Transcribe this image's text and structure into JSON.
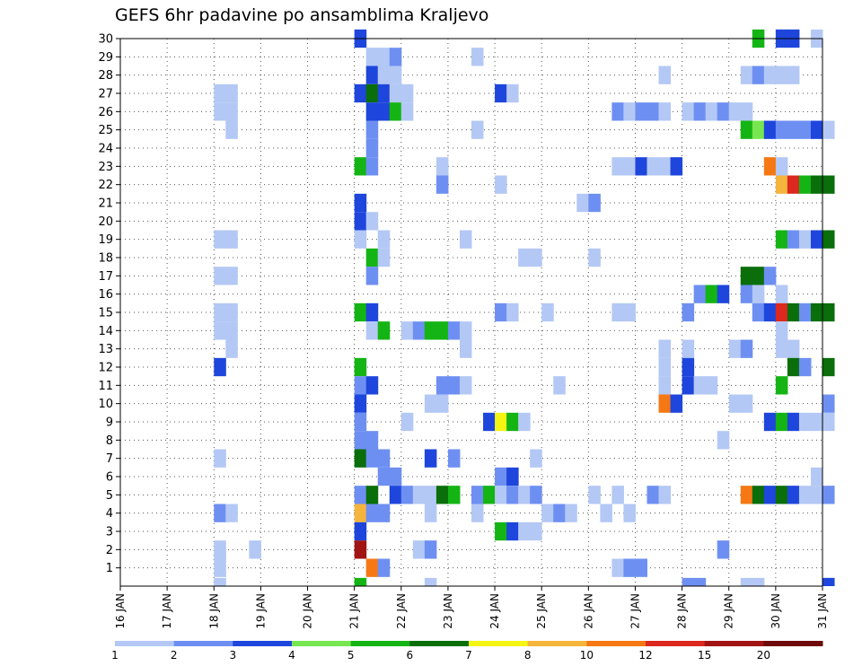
{
  "chart_data": {
    "type": "heatmap",
    "title": "GEFS 6hr padavine po ansamblima Kraljevo",
    "xlabel": "",
    "ylabel": "",
    "x_tick_labels": [
      "16 JAN",
      "17 JAN",
      "18 JAN",
      "19 JAN",
      "20 JAN",
      "21 JAN",
      "22 JAN",
      "23 JAN",
      "24 JAN",
      "25 JAN",
      "26 JAN",
      "27 JAN",
      "28 JAN",
      "29 JAN",
      "30 JAN",
      "31 JAN"
    ],
    "x_range_days": [
      16,
      31
    ],
    "y_tick_labels": [
      "1",
      "2",
      "3",
      "4",
      "5",
      "6",
      "7",
      "8",
      "9",
      "10",
      "11",
      "12",
      "13",
      "14",
      "15",
      "16",
      "17",
      "18",
      "19",
      "20",
      "21",
      "22",
      "23",
      "24",
      "25",
      "26",
      "27",
      "28",
      "29",
      "30"
    ],
    "y_range": [
      0,
      30
    ],
    "grid": true,
    "legend_placement": "bottom",
    "legend": {
      "labels": [
        "1",
        "2",
        "3",
        "4",
        "5",
        "6",
        "7",
        "8",
        "10",
        "12",
        "15",
        "20"
      ],
      "colors": [
        "#b4c8f5",
        "#6e8ff2",
        "#1e46dc",
        "#78e650",
        "#14b414",
        "#0a6e0a",
        "#f5f514",
        "#f5b43c",
        "#f57814",
        "#dc281e",
        "#a01414",
        "#6e0a0a"
      ]
    },
    "columns": [
      {
        "day": 18.0,
        "cells": [
          [
            27,
            1
          ],
          [
            26,
            1
          ],
          [
            19,
            1
          ],
          [
            17,
            1
          ],
          [
            15,
            1
          ],
          [
            14,
            1
          ],
          [
            12,
            3
          ],
          [
            7,
            1
          ],
          [
            4,
            2
          ],
          [
            2,
            1
          ],
          [
            1,
            1
          ],
          [
            0,
            1
          ]
        ]
      },
      {
        "day": 18.25,
        "cells": [
          [
            27,
            1
          ],
          [
            26,
            1
          ],
          [
            25,
            1
          ],
          [
            19,
            1
          ],
          [
            17,
            1
          ],
          [
            15,
            1
          ],
          [
            14,
            1
          ],
          [
            13,
            1
          ],
          [
            4,
            1
          ]
        ]
      },
      {
        "day": 18.75,
        "cells": [
          [
            2,
            1
          ]
        ]
      },
      {
        "day": 21.0,
        "cells": [
          [
            30,
            3
          ],
          [
            27,
            3
          ],
          [
            23,
            5
          ],
          [
            21,
            3
          ],
          [
            20,
            3
          ],
          [
            19,
            1
          ],
          [
            15,
            5
          ],
          [
            12,
            5
          ],
          [
            11,
            2
          ],
          [
            10,
            3
          ],
          [
            9,
            2
          ],
          [
            8,
            2
          ],
          [
            7,
            6
          ],
          [
            5,
            2
          ],
          [
            4,
            8
          ],
          [
            3,
            3
          ],
          [
            2,
            11
          ],
          [
            0,
            5
          ]
        ]
      },
      {
        "day": 21.25,
        "cells": [
          [
            29,
            1
          ],
          [
            28,
            3
          ],
          [
            27,
            6
          ],
          [
            26,
            3
          ],
          [
            25,
            2
          ],
          [
            24,
            2
          ],
          [
            23,
            2
          ],
          [
            20,
            1
          ],
          [
            18,
            5
          ],
          [
            17,
            2
          ],
          [
            15,
            3
          ],
          [
            14,
            1
          ],
          [
            11,
            3
          ],
          [
            8,
            2
          ],
          [
            7,
            2
          ],
          [
            5,
            6
          ],
          [
            4,
            2
          ],
          [
            1,
            9
          ]
        ]
      },
      {
        "day": 21.5,
        "cells": [
          [
            29,
            1
          ],
          [
            28,
            1
          ],
          [
            27,
            3
          ],
          [
            26,
            3
          ],
          [
            19,
            1
          ],
          [
            18,
            1
          ],
          [
            14,
            5
          ],
          [
            7,
            2
          ],
          [
            6,
            2
          ],
          [
            4,
            2
          ],
          [
            1,
            2
          ]
        ]
      },
      {
        "day": 21.75,
        "cells": [
          [
            29,
            2
          ],
          [
            28,
            1
          ],
          [
            27,
            1
          ],
          [
            26,
            5
          ],
          [
            6,
            2
          ],
          [
            5,
            3
          ]
        ]
      },
      {
        "day": 22.0,
        "cells": [
          [
            27,
            1
          ],
          [
            26,
            1
          ],
          [
            14,
            1
          ],
          [
            9,
            1
          ],
          [
            5,
            2
          ]
        ]
      },
      {
        "day": 22.25,
        "cells": [
          [
            14,
            2
          ],
          [
            5,
            1
          ],
          [
            2,
            1
          ]
        ]
      },
      {
        "day": 22.5,
        "cells": [
          [
            14,
            5
          ],
          [
            10,
            1
          ],
          [
            7,
            3
          ],
          [
            5,
            1
          ],
          [
            4,
            1
          ],
          [
            2,
            2
          ],
          [
            0,
            1
          ]
        ]
      },
      {
        "day": 22.75,
        "cells": [
          [
            23,
            1
          ],
          [
            22,
            2
          ],
          [
            14,
            5
          ],
          [
            11,
            2
          ],
          [
            10,
            1
          ],
          [
            5,
            6
          ]
        ]
      },
      {
        "day": 23.0,
        "cells": [
          [
            14,
            2
          ],
          [
            11,
            2
          ],
          [
            7,
            2
          ],
          [
            5,
            5
          ]
        ]
      },
      {
        "day": 23.25,
        "cells": [
          [
            19,
            1
          ],
          [
            14,
            1
          ],
          [
            13,
            1
          ],
          [
            11,
            1
          ]
        ]
      },
      {
        "day": 23.5,
        "cells": [
          [
            29,
            1
          ],
          [
            25,
            1
          ],
          [
            5,
            2
          ],
          [
            4,
            1
          ]
        ]
      },
      {
        "day": 23.75,
        "cells": [
          [
            9,
            3
          ],
          [
            5,
            5
          ]
        ]
      },
      {
        "day": 24.0,
        "cells": [
          [
            27,
            3
          ],
          [
            22,
            1
          ],
          [
            15,
            2
          ],
          [
            9,
            7
          ],
          [
            6,
            2
          ],
          [
            5,
            1
          ],
          [
            3,
            5
          ]
        ]
      },
      {
        "day": 24.25,
        "cells": [
          [
            27,
            1
          ],
          [
            15,
            1
          ],
          [
            9,
            5
          ],
          [
            6,
            3
          ],
          [
            5,
            2
          ],
          [
            3,
            3
          ]
        ]
      },
      {
        "day": 24.5,
        "cells": [
          [
            18,
            1
          ],
          [
            9,
            1
          ],
          [
            5,
            1
          ],
          [
            3,
            1
          ]
        ]
      },
      {
        "day": 24.75,
        "cells": [
          [
            18,
            1
          ],
          [
            7,
            1
          ],
          [
            5,
            2
          ],
          [
            3,
            1
          ]
        ]
      },
      {
        "day": 25.0,
        "cells": [
          [
            15,
            1
          ],
          [
            4,
            1
          ]
        ]
      },
      {
        "day": 25.25,
        "cells": [
          [
            11,
            1
          ],
          [
            4,
            2
          ]
        ]
      },
      {
        "day": 25.5,
        "cells": [
          [
            4,
            1
          ]
        ]
      },
      {
        "day": 25.75,
        "cells": [
          [
            21,
            1
          ]
        ]
      },
      {
        "day": 26.0,
        "cells": [
          [
            21,
            2
          ],
          [
            18,
            1
          ],
          [
            5,
            1
          ]
        ]
      },
      {
        "day": 26.25,
        "cells": [
          [
            4,
            1
          ]
        ]
      },
      {
        "day": 26.5,
        "cells": [
          [
            26,
            2
          ],
          [
            23,
            1
          ],
          [
            15,
            1
          ],
          [
            5,
            1
          ],
          [
            1,
            1
          ]
        ]
      },
      {
        "day": 26.75,
        "cells": [
          [
            26,
            1
          ],
          [
            23,
            1
          ],
          [
            15,
            1
          ],
          [
            4,
            1
          ],
          [
            1,
            2
          ]
        ]
      },
      {
        "day": 27.0,
        "cells": [
          [
            26,
            2
          ],
          [
            23,
            3
          ],
          [
            1,
            2
          ]
        ]
      },
      {
        "day": 27.25,
        "cells": [
          [
            26,
            2
          ],
          [
            23,
            1
          ],
          [
            5,
            2
          ]
        ]
      },
      {
        "day": 27.5,
        "cells": [
          [
            28,
            1
          ],
          [
            26,
            1
          ],
          [
            23,
            1
          ],
          [
            13,
            1
          ],
          [
            12,
            1
          ],
          [
            11,
            1
          ],
          [
            10,
            9
          ],
          [
            5,
            1
          ]
        ]
      },
      {
        "day": 27.75,
        "cells": [
          [
            23,
            3
          ],
          [
            10,
            3
          ]
        ]
      },
      {
        "day": 28.0,
        "cells": [
          [
            26,
            1
          ],
          [
            15,
            2
          ],
          [
            13,
            1
          ],
          [
            12,
            3
          ],
          [
            11,
            3
          ],
          [
            0,
            2
          ]
        ]
      },
      {
        "day": 28.25,
        "cells": [
          [
            26,
            2
          ],
          [
            16,
            2
          ],
          [
            11,
            1
          ],
          [
            0,
            2
          ]
        ]
      },
      {
        "day": 28.5,
        "cells": [
          [
            26,
            1
          ],
          [
            16,
            5
          ],
          [
            11,
            1
          ]
        ]
      },
      {
        "day": 28.75,
        "cells": [
          [
            26,
            2
          ],
          [
            16,
            3
          ],
          [
            8,
            1
          ],
          [
            2,
            2
          ]
        ]
      },
      {
        "day": 29.0,
        "cells": [
          [
            26,
            1
          ],
          [
            13,
            1
          ],
          [
            10,
            1
          ]
        ]
      },
      {
        "day": 29.25,
        "cells": [
          [
            28,
            1
          ],
          [
            26,
            1
          ],
          [
            25,
            5
          ],
          [
            17,
            6
          ],
          [
            16,
            2
          ],
          [
            13,
            2
          ],
          [
            10,
            1
          ],
          [
            5,
            9
          ],
          [
            0,
            1
          ]
        ]
      },
      {
        "day": 29.5,
        "cells": [
          [
            30,
            5
          ],
          [
            28,
            2
          ],
          [
            25,
            4
          ],
          [
            17,
            6
          ],
          [
            16,
            1
          ],
          [
            15,
            2
          ],
          [
            5,
            6
          ],
          [
            0,
            1
          ]
        ]
      },
      {
        "day": 29.75,
        "cells": [
          [
            28,
            1
          ],
          [
            25,
            3
          ],
          [
            23,
            9
          ],
          [
            17,
            2
          ],
          [
            15,
            3
          ],
          [
            9,
            3
          ],
          [
            5,
            3
          ]
        ]
      },
      {
        "day": 30.0,
        "cells": [
          [
            30,
            3
          ],
          [
            28,
            1
          ],
          [
            25,
            2
          ],
          [
            23,
            1
          ],
          [
            22,
            8
          ],
          [
            19,
            5
          ],
          [
            16,
            1
          ],
          [
            15,
            10
          ],
          [
            14,
            1
          ],
          [
            13,
            1
          ],
          [
            11,
            5
          ],
          [
            9,
            5
          ],
          [
            5,
            6
          ]
        ]
      },
      {
        "day": 30.25,
        "cells": [
          [
            30,
            3
          ],
          [
            28,
            1
          ],
          [
            25,
            2
          ],
          [
            22,
            10
          ],
          [
            19,
            2
          ],
          [
            15,
            6
          ],
          [
            13,
            1
          ],
          [
            12,
            6
          ],
          [
            9,
            3
          ],
          [
            5,
            3
          ]
        ]
      },
      {
        "day": 30.5,
        "cells": [
          [
            25,
            2
          ],
          [
            22,
            5
          ],
          [
            19,
            1
          ],
          [
            15,
            2
          ],
          [
            12,
            2
          ],
          [
            9,
            1
          ],
          [
            5,
            1
          ]
        ]
      },
      {
        "day": 30.75,
        "cells": [
          [
            30,
            1
          ],
          [
            25,
            3
          ],
          [
            22,
            6
          ],
          [
            19,
            3
          ],
          [
            15,
            6
          ],
          [
            9,
            1
          ],
          [
            6,
            1
          ],
          [
            5,
            1
          ]
        ]
      },
      {
        "day": 31.0,
        "cells": [
          [
            25,
            1
          ],
          [
            22,
            6
          ],
          [
            19,
            6
          ],
          [
            15,
            6
          ],
          [
            12,
            6
          ],
          [
            10,
            2
          ],
          [
            9,
            1
          ],
          [
            5,
            2
          ],
          [
            0,
            3
          ]
        ]
      }
    ]
  }
}
